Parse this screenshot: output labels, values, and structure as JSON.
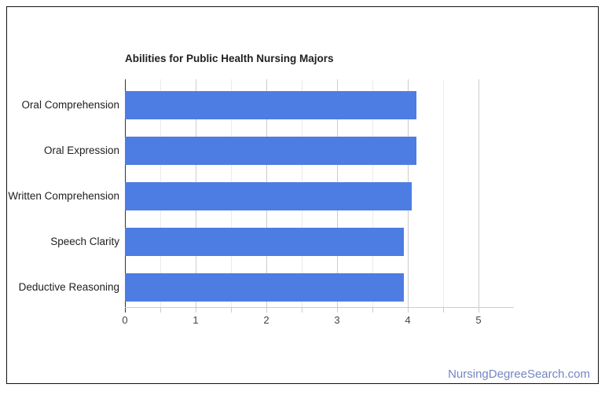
{
  "card": {
    "background": "#ffffff",
    "border_color": "#111111"
  },
  "chart_data": {
    "type": "bar",
    "orientation": "horizontal",
    "title": "Abilities for Public Health Nursing Majors",
    "categories": [
      "Oral Comprehension",
      "Oral Expression",
      "Written Comprehension",
      "Speech Clarity",
      "Deductive Reasoning"
    ],
    "values": [
      4.12,
      4.12,
      4.06,
      3.94,
      3.94
    ],
    "xlabel": "",
    "ylabel": "",
    "xlim": [
      0,
      5
    ],
    "x_ticks": [
      0,
      1,
      2,
      3,
      4,
      5
    ],
    "x_minor_tick_step": 0.5,
    "x_plot_span_units": 5.5,
    "grid": true,
    "legend": "none",
    "bar_color": "#4d7de2",
    "title_color": "#212121",
    "category_label_color": "#212121",
    "tick_label_color": "#444444",
    "major_gridline_color": "#cccccc",
    "minor_gridline_color": "#ebebeb",
    "axis_line_color": "#333333"
  },
  "watermark": {
    "text": "NursingDegreeSearch.com",
    "color": "#7585c2"
  }
}
